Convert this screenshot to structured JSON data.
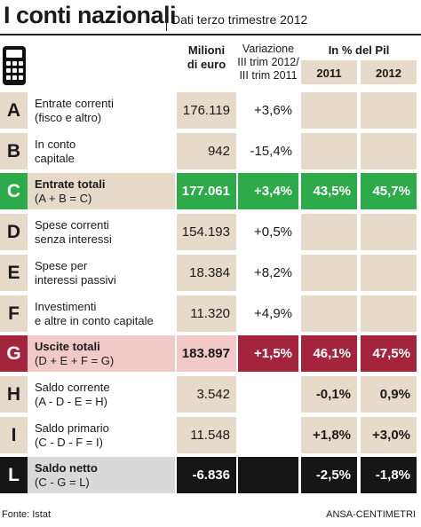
{
  "title": "I conti nazionali",
  "subtitle": "Dati terzo trimestre 2012",
  "icon": "calculator-icon",
  "columns": {
    "milioni": [
      "Milioni",
      "di euro"
    ],
    "variazione": [
      "Variazione",
      "III trim 2012/",
      "III trim 2011"
    ],
    "pil": "In % del Pil",
    "year1": "2011",
    "year2": "2012"
  },
  "colors": {
    "beige": "#e6dac8",
    "green": "#2daa4a",
    "red": "#a3243b",
    "black": "#161616",
    "pink": "#f1c9c8",
    "grey": "#d9d9d9"
  },
  "rows": [
    {
      "letter": "A",
      "label": [
        "Entrate correnti",
        "(fisco e altro)"
      ],
      "milioni": "176.119",
      "variazione": "+3,6%",
      "pil2011": "",
      "pil2012": "",
      "style": "normal"
    },
    {
      "letter": "B",
      "label": [
        "In conto",
        "capitale"
      ],
      "milioni": "942",
      "variazione": "-15,4%",
      "pil2011": "",
      "pil2012": "",
      "style": "normal"
    },
    {
      "letter": "C",
      "label": [
        "Entrate totali",
        "(A + B = C)"
      ],
      "milioni": "177.061",
      "variazione": "+3,4%",
      "pil2011": "43,5%",
      "pil2012": "45,7%",
      "style": "green"
    },
    {
      "letter": "D",
      "label": [
        "Spese correnti",
        "senza interessi"
      ],
      "milioni": "154.193",
      "variazione": "+0,5%",
      "pil2011": "",
      "pil2012": "",
      "style": "normal"
    },
    {
      "letter": "E",
      "label": [
        "Spese per",
        "interessi passivi"
      ],
      "milioni": "18.384",
      "variazione": "+8,2%",
      "pil2011": "",
      "pil2012": "",
      "style": "normal"
    },
    {
      "letter": "F",
      "label": [
        "Investimenti",
        "e altre in conto capitale"
      ],
      "milioni": "11.320",
      "variazione": "+4,9%",
      "pil2011": "",
      "pil2012": "",
      "style": "normal"
    },
    {
      "letter": "G",
      "label": [
        "Uscite totali",
        "(D + E + F = G)"
      ],
      "milioni": "183.897",
      "variazione": "+1,5%",
      "pil2011": "46,1%",
      "pil2012": "47,5%",
      "style": "red"
    },
    {
      "letter": "H",
      "label": [
        "Saldo corrente",
        "(A - D - E = H)"
      ],
      "milioni": "3.542",
      "variazione": "",
      "pil2011": "-0,1%",
      "pil2012": "0,9%",
      "style": "saldo"
    },
    {
      "letter": "I",
      "label": [
        "Saldo primario",
        "(C - D - F = I)"
      ],
      "milioni": "11.548",
      "variazione": "",
      "pil2011": "+1,8%",
      "pil2012": "+3,0%",
      "style": "saldo"
    },
    {
      "letter": "L",
      "label": [
        "Saldo netto",
        "(C - G = L)"
      ],
      "milioni": "-6.836",
      "variazione": "",
      "pil2011": "-2,5%",
      "pil2012": "-1,8%",
      "style": "black"
    }
  ],
  "footer": {
    "source": "Fonte: Istat",
    "credit": "ANSA-CENTIMETRI"
  }
}
